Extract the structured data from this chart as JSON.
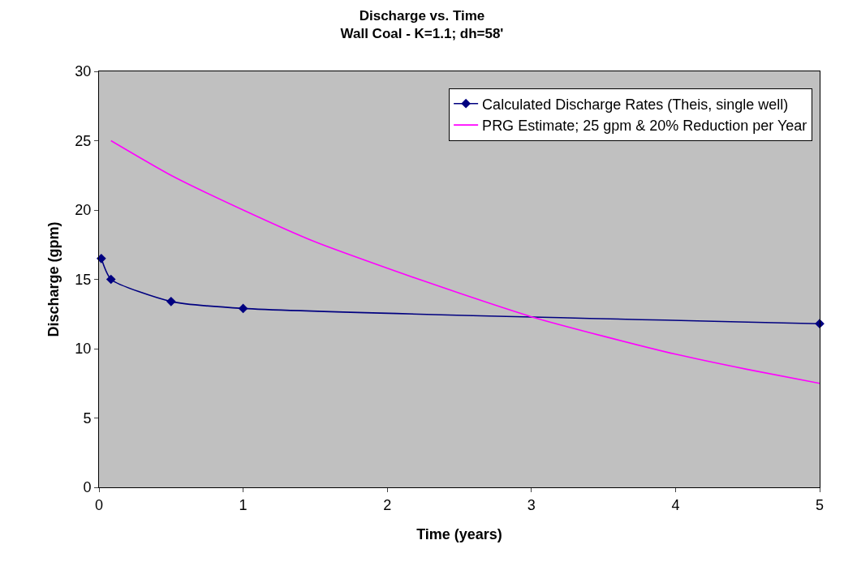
{
  "chart_data": {
    "type": "line",
    "title": "Discharge vs. Time",
    "subtitle": "Wall Coal - K=1.1; dh=58'",
    "xlabel": "Time (years)",
    "ylabel": "Discharge (gpm)",
    "xlim": [
      0,
      5
    ],
    "xticks": [
      0,
      1,
      2,
      3,
      4,
      5
    ],
    "ylim": [
      0,
      30
    ],
    "yticks": [
      0,
      5,
      10,
      15,
      20,
      25,
      30
    ],
    "grid": false,
    "legend": "top right",
    "series": [
      {
        "name": "Calculated Discharge Rates (Theis, single well)",
        "color": "#000080",
        "marker": "diamond",
        "x": [
          0.016,
          0.083,
          0.5,
          1,
          5
        ],
        "values": [
          16.5,
          15,
          13.4,
          12.9,
          11.8
        ]
      },
      {
        "name": "PRG Estimate; 25 gpm & 20% Reduction per Year",
        "color": "#ff00ff",
        "marker": "none",
        "x": [
          0.083,
          0.5,
          1,
          1.5,
          2,
          2.5,
          3,
          3.5,
          4,
          4.5,
          5
        ],
        "values": [
          25,
          22.5,
          20,
          17.7,
          15.8,
          14,
          12.3,
          10.9,
          9.6,
          8.5,
          7.5
        ]
      }
    ]
  }
}
